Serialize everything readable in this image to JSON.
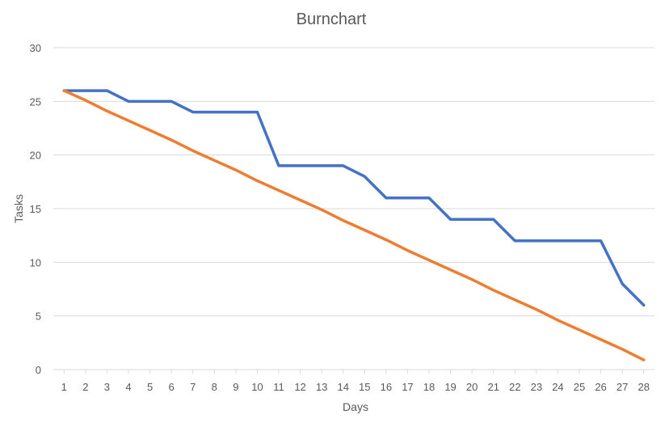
{
  "chart_data": {
    "type": "line",
    "title": "Burnchart",
    "xlabel": "Days",
    "ylabel": "Tasks",
    "x": [
      1,
      2,
      3,
      4,
      5,
      6,
      7,
      8,
      9,
      10,
      11,
      12,
      13,
      14,
      15,
      16,
      17,
      18,
      19,
      20,
      21,
      22,
      23,
      24,
      25,
      26,
      27,
      28
    ],
    "ylim": [
      0,
      30
    ],
    "yticks": [
      0,
      5,
      10,
      15,
      20,
      25,
      30
    ],
    "grid": true,
    "legend": "none",
    "series": [
      {
        "color": "#4472c4",
        "values": [
          26,
          26,
          26,
          25,
          25,
          25,
          24,
          24,
          24,
          24,
          19,
          19,
          19,
          19,
          18,
          16,
          16,
          16,
          14,
          14,
          14,
          12,
          12,
          12,
          12,
          12,
          8,
          6
        ]
      },
      {
        "color": "#ed7d31",
        "values": [
          26,
          25.1,
          24.1,
          23.2,
          22.3,
          21.4,
          20.4,
          19.5,
          18.6,
          17.6,
          16.7,
          15.8,
          14.9,
          13.9,
          13.0,
          12.1,
          11.1,
          10.2,
          9.3,
          8.4,
          7.4,
          6.5,
          5.6,
          4.6,
          3.7,
          2.8,
          1.9,
          0.9
        ]
      }
    ]
  }
}
